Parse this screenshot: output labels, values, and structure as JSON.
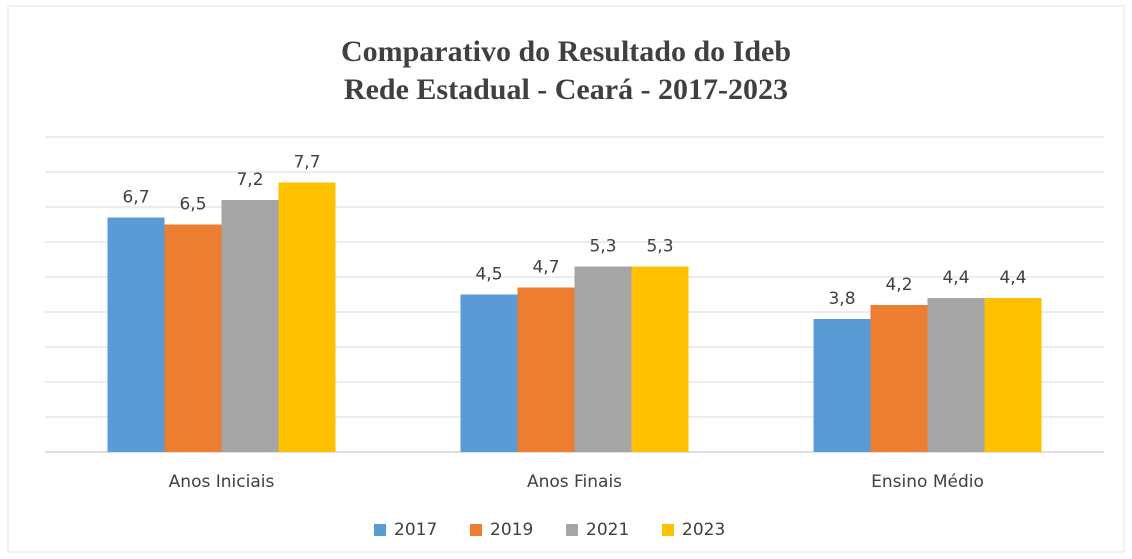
{
  "chart_data": {
    "type": "bar",
    "title": "Comparativo do Resultado do Ideb",
    "subtitle": "Rede Estadual - Ceará - 2017-2023",
    "categories": [
      "Anos Iniciais",
      "Anos Finais",
      "Ensino Médio"
    ],
    "series": [
      {
        "name": "2017",
        "color": "#5b9bd5",
        "values": [
          6.7,
          4.5,
          3.8
        ],
        "value_labels": [
          "6,7",
          "4,5",
          "3,8"
        ]
      },
      {
        "name": "2019",
        "color": "#ed7d31",
        "values": [
          6.5,
          4.7,
          4.2
        ],
        "value_labels": [
          "6,5",
          "4,7",
          "4,2"
        ]
      },
      {
        "name": "2021",
        "color": "#a5a5a5",
        "values": [
          7.2,
          5.3,
          4.4
        ],
        "value_labels": [
          "7,2",
          "5,3",
          "4,4"
        ]
      },
      {
        "name": "2023",
        "color": "#ffc000",
        "values": [
          7.7,
          5.3,
          4.4
        ],
        "value_labels": [
          "7,7",
          "5,3",
          "4,4"
        ]
      }
    ],
    "ylim": [
      0,
      9
    ],
    "yticks": [
      0,
      1,
      2,
      3,
      4,
      5,
      6,
      7,
      8,
      9
    ],
    "grid": true,
    "legend": "bottom"
  }
}
